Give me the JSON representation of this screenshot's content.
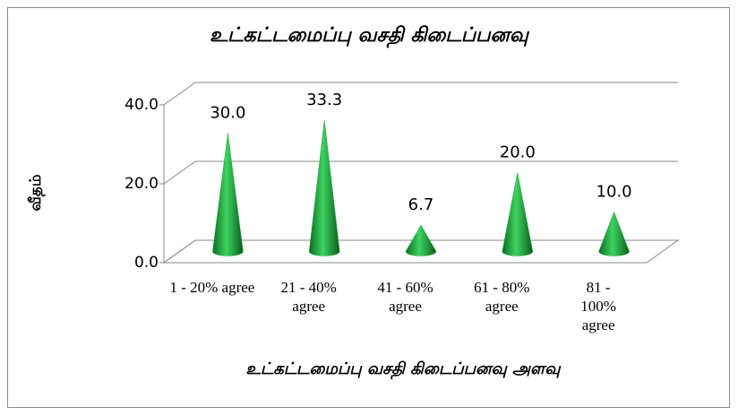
{
  "chart_data": {
    "type": "cone",
    "title": "உட்கட்டமைப்பு வசதி கிடைப்பனவு",
    "y_label": "வீதம்",
    "x_label": "உட்கட்டமைப்பு வசதி கிடைப்பனவு அளவு",
    "categories": [
      "1 - 20% agree",
      "21 - 40% agree",
      "41 - 60% agree",
      "61 - 80% agree",
      "81 - 100% agree"
    ],
    "values": [
      30,
      33.3,
      6.7,
      20,
      10
    ],
    "value_labels": [
      "30.0",
      "33.3",
      "6.7",
      "20.0",
      "10.0"
    ],
    "color": "#1fa83c",
    "ylim": [
      0,
      40
    ],
    "yticks": [
      {
        "value": 0,
        "label": "0.0"
      },
      {
        "value": 20,
        "label": "20.0"
      },
      {
        "value": 40,
        "label": "40.0"
      }
    ],
    "grid": true
  }
}
